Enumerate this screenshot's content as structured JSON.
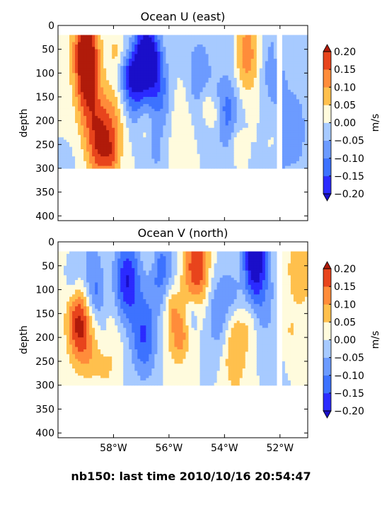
{
  "footer_text": "nb150: last time 2010/10/16 20:54:47",
  "colors": {
    "levels": [
      "#2b2bff",
      "#3d72ff",
      "#6c9bff",
      "#a7caff",
      "#d9ecff",
      "#fffbdd",
      "#ffe28a",
      "#ffc04d",
      "#ff8c3a",
      "#e8441c"
    ],
    "overflow_low": "#1a0fc9",
    "overflow_high": "#b01b0a",
    "mask": "#ffffff"
  },
  "chart_data": [
    {
      "type": "heatmap",
      "title": "Ocean U (east)",
      "xlabel": "",
      "ylabel": "depth",
      "colorbar_label": "m/s",
      "colorbar_ticks": [
        "0.20",
        "0.15",
        "0.10",
        "0.05",
        "0.00",
        "−0.05",
        "−0.10",
        "−0.15",
        "−0.20"
      ],
      "y_ticks": [
        "0",
        "50",
        "100",
        "150",
        "200",
        "250",
        "300",
        "350",
        "400"
      ],
      "x_ticks": [],
      "xlim": [
        -60,
        -51
      ],
      "ylim": [
        410,
        0
      ],
      "vlim": [
        -0.2,
        0.2
      ],
      "levels": [
        -0.2,
        -0.15,
        -0.1,
        -0.05,
        0,
        0.05,
        0.1,
        0.15,
        0.2
      ],
      "data_depth_range": [
        20,
        300
      ],
      "features": [
        {
          "lon": -59.0,
          "depth": 60,
          "value": 0.28
        },
        {
          "lon": -58.9,
          "depth": 160,
          "value": 0.12
        },
        {
          "lon": -58.5,
          "depth": 250,
          "value": 0.18
        },
        {
          "lon": -58.0,
          "depth": 210,
          "value": 0.1
        },
        {
          "lon": -57.3,
          "depth": 120,
          "value": -0.12
        },
        {
          "lon": -56.8,
          "depth": 70,
          "value": -0.26
        },
        {
          "lon": -56.3,
          "depth": 150,
          "value": -0.1
        },
        {
          "lon": -55.6,
          "depth": 200,
          "value": 0.05
        },
        {
          "lon": -54.9,
          "depth": 110,
          "value": -0.1
        },
        {
          "lon": -53.9,
          "depth": 180,
          "value": -0.12
        },
        {
          "lon": -53.2,
          "depth": 60,
          "value": 0.13
        },
        {
          "lon": -52.2,
          "depth": 90,
          "value": -0.1
        },
        {
          "lon": -51.5,
          "depth": 220,
          "value": -0.1
        }
      ]
    },
    {
      "type": "heatmap",
      "title": "Ocean V (north)",
      "xlabel": "",
      "ylabel": "depth",
      "colorbar_label": "m/s",
      "colorbar_ticks": [
        "0.20",
        "0.15",
        "0.10",
        "0.05",
        "0.00",
        "−0.05",
        "−0.10",
        "−0.15",
        "−0.20"
      ],
      "y_ticks": [
        "0",
        "50",
        "100",
        "150",
        "200",
        "250",
        "300",
        "350",
        "400"
      ],
      "x_ticks": [
        "58°W",
        "56°W",
        "54°W",
        "52°W"
      ],
      "x_tick_values": [
        -58,
        -56,
        -54,
        -52
      ],
      "xlim": [
        -60,
        -51
      ],
      "ylim": [
        410,
        0
      ],
      "vlim": [
        -0.2,
        0.2
      ],
      "levels": [
        -0.2,
        -0.15,
        -0.1,
        -0.05,
        0,
        0.05,
        0.1,
        0.15,
        0.2
      ],
      "data_depth_range": [
        20,
        300
      ],
      "features": [
        {
          "lon": -59.2,
          "depth": 170,
          "value": 0.24
        },
        {
          "lon": -58.8,
          "depth": 90,
          "value": -0.12
        },
        {
          "lon": -58.3,
          "depth": 230,
          "value": 0.08
        },
        {
          "lon": -57.5,
          "depth": 80,
          "value": -0.2
        },
        {
          "lon": -56.9,
          "depth": 200,
          "value": -0.15
        },
        {
          "lon": -56.3,
          "depth": 60,
          "value": -0.12
        },
        {
          "lon": -55.7,
          "depth": 180,
          "value": 0.1
        },
        {
          "lon": -55.0,
          "depth": 50,
          "value": 0.2
        },
        {
          "lon": -54.2,
          "depth": 150,
          "value": -0.1
        },
        {
          "lon": -53.6,
          "depth": 230,
          "value": 0.12
        },
        {
          "lon": -52.9,
          "depth": 40,
          "value": -0.26
        },
        {
          "lon": -52.5,
          "depth": 150,
          "value": -0.05
        },
        {
          "lon": -51.3,
          "depth": 60,
          "value": 0.1
        }
      ]
    }
  ]
}
